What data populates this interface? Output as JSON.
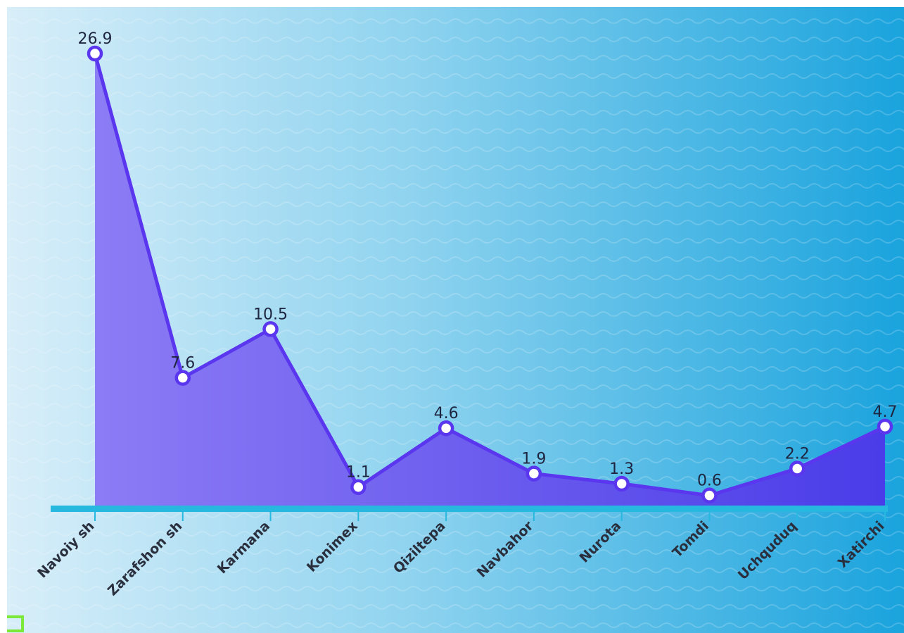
{
  "chart_data": {
    "type": "area",
    "categories": [
      "Navoiy sh",
      "Zarafshon sh",
      "Karmana",
      "Konimex",
      "Qiziltepa",
      "Navbahor",
      "Nurota",
      "Tomdi",
      "Uchquduq",
      "Xatirchi"
    ],
    "values": [
      26.9,
      7.6,
      10.5,
      1.1,
      4.6,
      1.9,
      1.3,
      0.6,
      2.2,
      4.7
    ],
    "value_labels": [
      "26.9",
      "7.6",
      "10.5",
      "1.1",
      "4.6",
      "1.9",
      "1.3",
      "0.6",
      "2.2",
      "4.7"
    ],
    "ylim": [
      0,
      28
    ],
    "grid": false,
    "legend": "none",
    "colors": {
      "line": "#5a36ee",
      "area_start": "#8c7cf5",
      "area_end": "#4a3ce8",
      "marker_fill": "#ffffff",
      "marker_stroke": "#5a36ee",
      "axis": "#27b8e0",
      "bg_left": "#d8eef9",
      "bg_right": "#1aa3dd",
      "corner_mark": "#7be83a"
    }
  }
}
